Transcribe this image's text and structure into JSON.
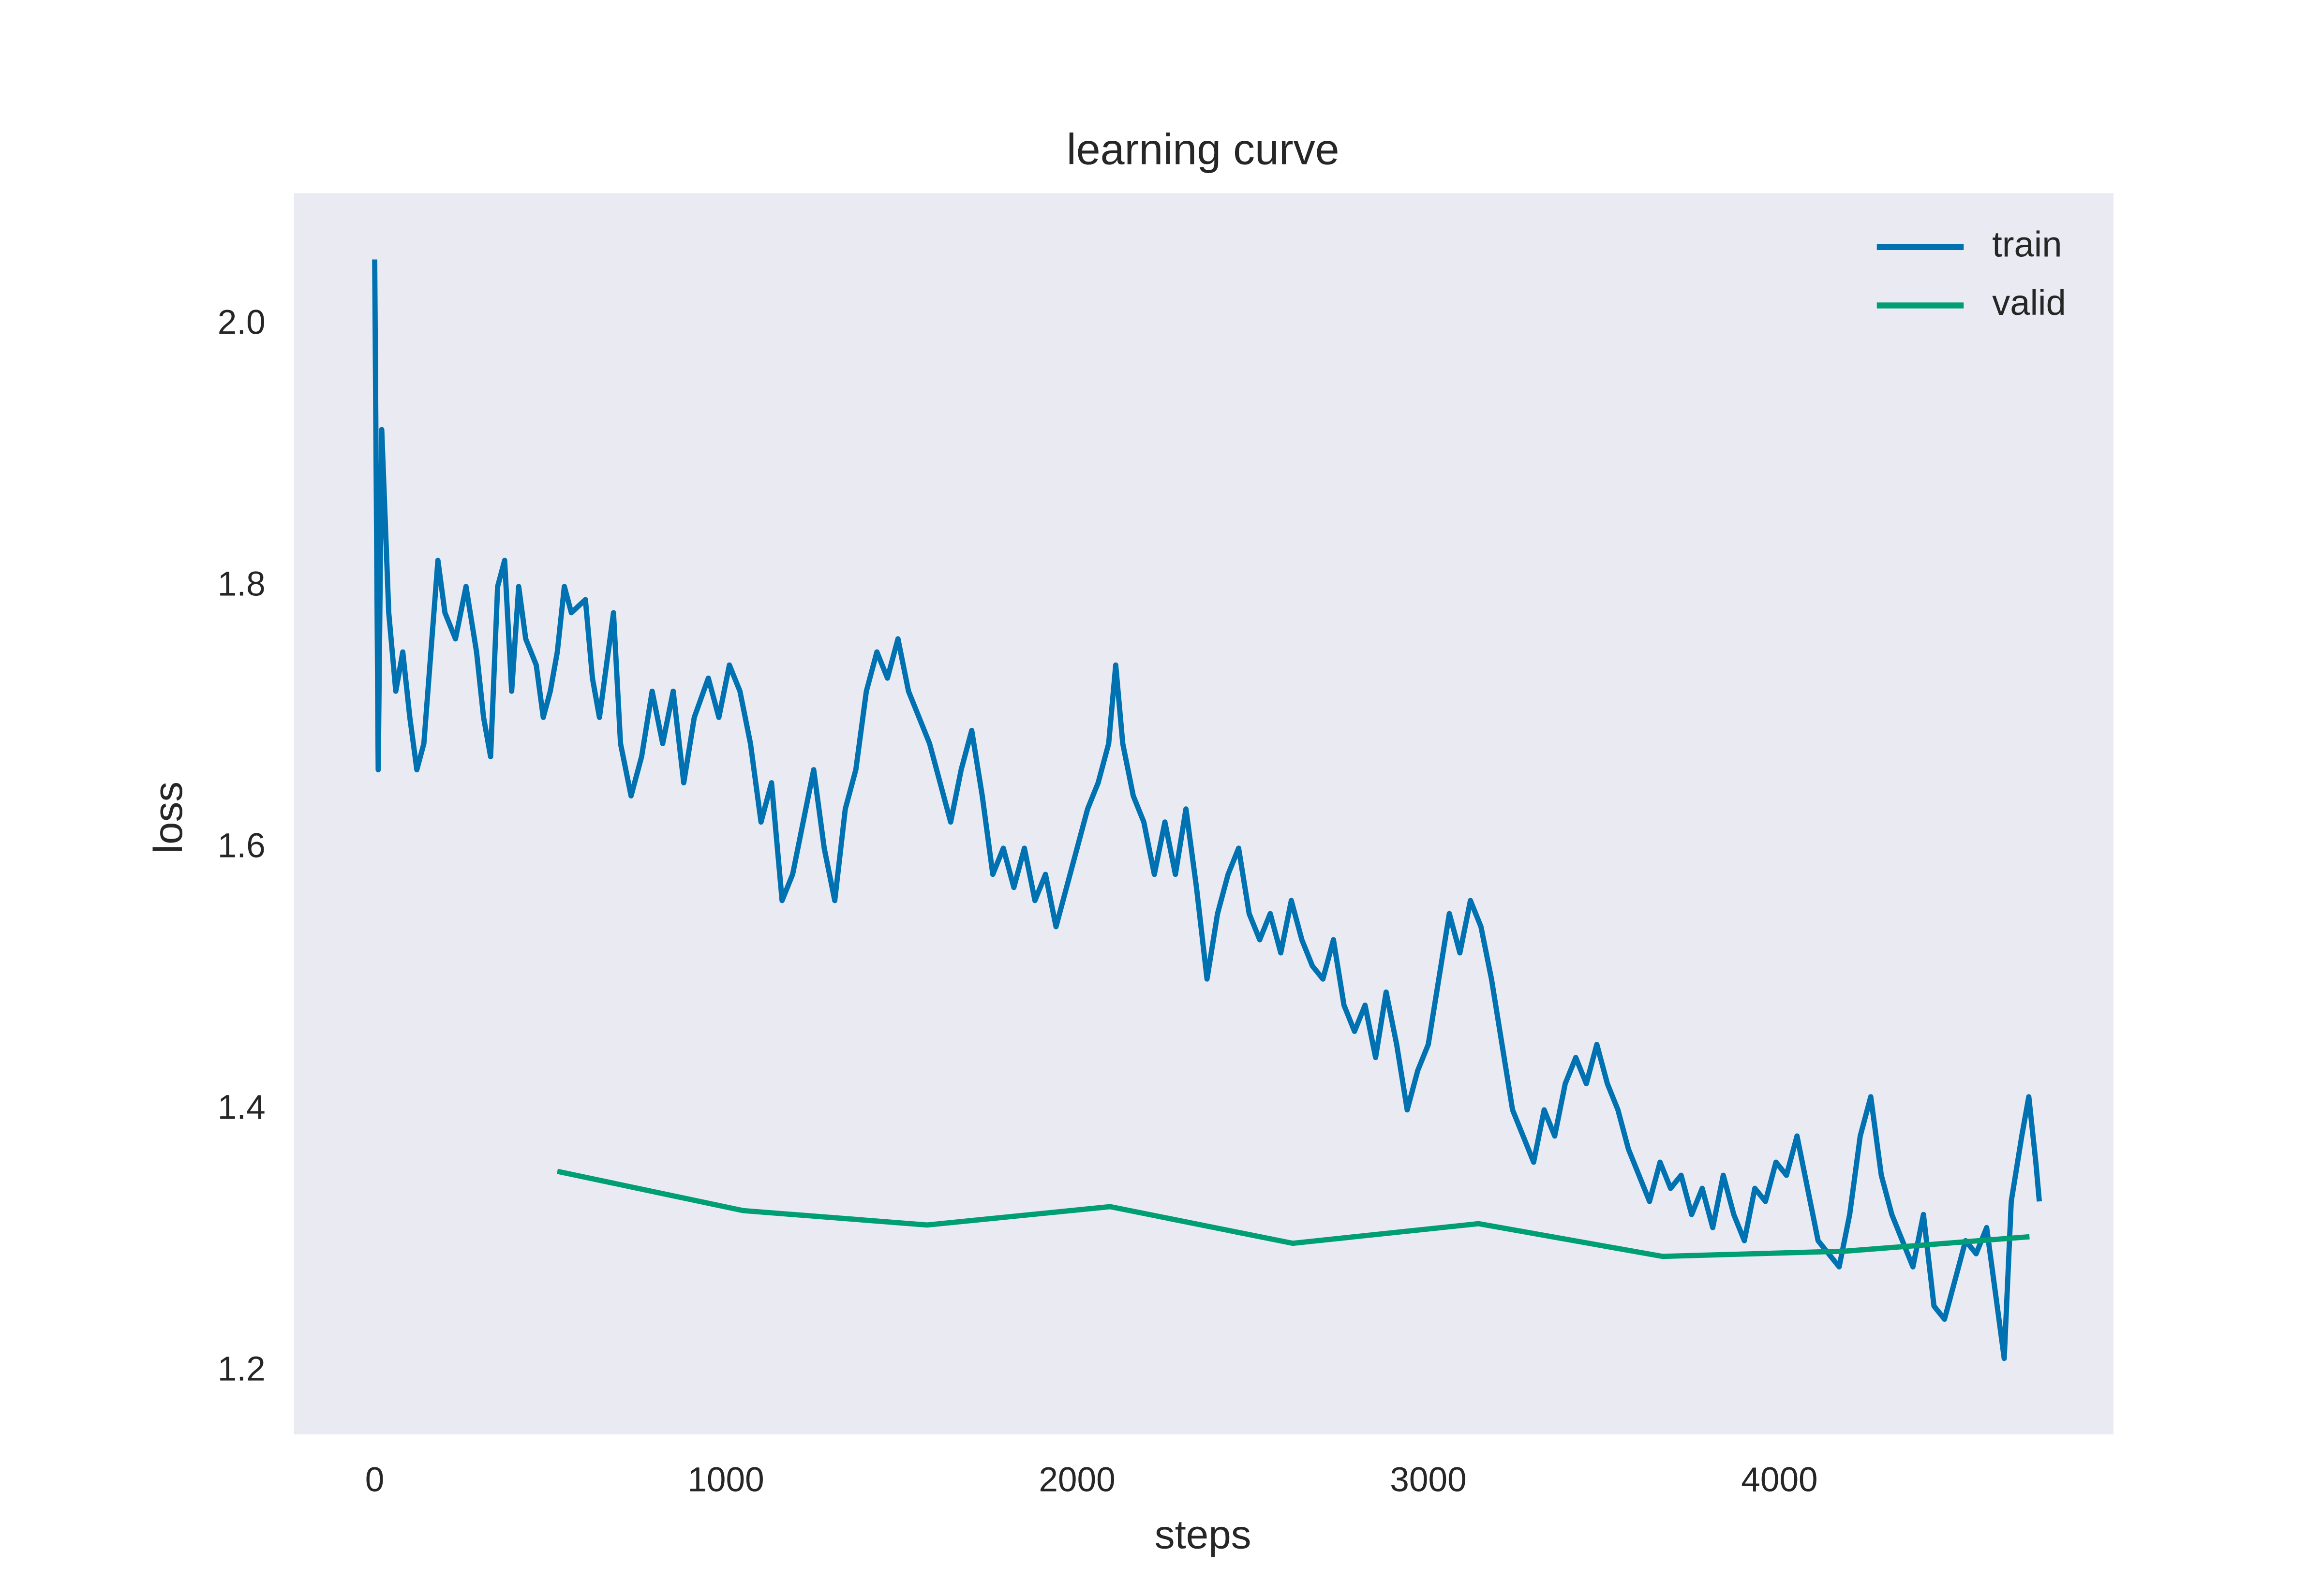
{
  "chart_data": {
    "type": "line",
    "title": "learning curve",
    "x_label": "steps",
    "y_label": "loss",
    "xlim": [
      -230,
      4951
    ],
    "ylim": [
      1.152,
      2.1007
    ],
    "xticks": [
      0,
      1000,
      2000,
      3000,
      4000
    ],
    "yticks": [
      {
        "value": 1.2,
        "label": "1.2"
      },
      {
        "value": 1.4,
        "label": "1.4"
      },
      {
        "value": 1.6,
        "label": "1.6"
      },
      {
        "value": 1.8,
        "label": "1.8"
      },
      {
        "value": 2.0,
        "label": "2.0"
      }
    ],
    "grid": false,
    "legend": "upper right",
    "background": "#eaeaf2",
    "series": [
      {
        "name": "train",
        "color": "#0072b2",
        "x": [
          0,
          10,
          20,
          40,
          60,
          80,
          100,
          120,
          140,
          160,
          180,
          200,
          230,
          260,
          290,
          310,
          330,
          350,
          370,
          390,
          410,
          430,
          460,
          480,
          500,
          520,
          540,
          560,
          600,
          620,
          640,
          660,
          680,
          700,
          730,
          760,
          790,
          820,
          850,
          880,
          910,
          950,
          980,
          1010,
          1040,
          1070,
          1100,
          1130,
          1160,
          1190,
          1220,
          1250,
          1280,
          1310,
          1340,
          1370,
          1400,
          1430,
          1460,
          1490,
          1520,
          1550,
          1580,
          1610,
          1640,
          1670,
          1700,
          1730,
          1760,
          1790,
          1820,
          1850,
          1880,
          1910,
          1940,
          1970,
          2000,
          2030,
          2060,
          2090,
          2110,
          2130,
          2160,
          2190,
          2220,
          2250,
          2280,
          2310,
          2340,
          2370,
          2400,
          2430,
          2460,
          2490,
          2520,
          2550,
          2580,
          2610,
          2640,
          2670,
          2700,
          2730,
          2760,
          2790,
          2820,
          2850,
          2880,
          2910,
          2940,
          2970,
          3000,
          3030,
          3060,
          3090,
          3120,
          3150,
          3180,
          3210,
          3240,
          3270,
          3300,
          3330,
          3360,
          3390,
          3420,
          3450,
          3480,
          3510,
          3540,
          3570,
          3600,
          3630,
          3660,
          3690,
          3720,
          3750,
          3780,
          3810,
          3840,
          3870,
          3900,
          3930,
          3960,
          3990,
          4020,
          4050,
          4080,
          4110,
          4140,
          4170,
          4200,
          4230,
          4260,
          4290,
          4320,
          4350,
          4380,
          4410,
          4440,
          4470,
          4500,
          4530,
          4560,
          4590,
          4620,
          4640,
          4660,
          4690,
          4710,
          4730,
          4740
        ],
        "values": [
          2.05,
          1.66,
          1.92,
          1.78,
          1.72,
          1.75,
          1.7,
          1.66,
          1.68,
          1.75,
          1.82,
          1.78,
          1.76,
          1.8,
          1.75,
          1.7,
          1.67,
          1.8,
          1.82,
          1.72,
          1.8,
          1.76,
          1.74,
          1.7,
          1.72,
          1.75,
          1.8,
          1.78,
          1.79,
          1.73,
          1.7,
          1.74,
          1.78,
          1.68,
          1.64,
          1.67,
          1.72,
          1.68,
          1.72,
          1.65,
          1.7,
          1.73,
          1.7,
          1.74,
          1.72,
          1.68,
          1.62,
          1.65,
          1.56,
          1.58,
          1.62,
          1.66,
          1.6,
          1.56,
          1.63,
          1.66,
          1.72,
          1.75,
          1.73,
          1.76,
          1.72,
          1.7,
          1.68,
          1.65,
          1.62,
          1.66,
          1.69,
          1.64,
          1.58,
          1.6,
          1.57,
          1.6,
          1.56,
          1.58,
          1.54,
          1.57,
          1.6,
          1.63,
          1.65,
          1.68,
          1.74,
          1.68,
          1.64,
          1.62,
          1.58,
          1.62,
          1.58,
          1.63,
          1.57,
          1.5,
          1.55,
          1.58,
          1.6,
          1.55,
          1.53,
          1.55,
          1.52,
          1.56,
          1.53,
          1.51,
          1.5,
          1.53,
          1.48,
          1.46,
          1.48,
          1.44,
          1.49,
          1.45,
          1.4,
          1.43,
          1.45,
          1.5,
          1.55,
          1.52,
          1.56,
          1.54,
          1.5,
          1.45,
          1.4,
          1.38,
          1.36,
          1.4,
          1.38,
          1.42,
          1.44,
          1.42,
          1.45,
          1.42,
          1.4,
          1.37,
          1.35,
          1.33,
          1.36,
          1.34,
          1.35,
          1.32,
          1.34,
          1.31,
          1.35,
          1.32,
          1.3,
          1.34,
          1.33,
          1.36,
          1.35,
          1.38,
          1.34,
          1.3,
          1.29,
          1.28,
          1.32,
          1.38,
          1.41,
          1.35,
          1.32,
          1.3,
          1.28,
          1.32,
          1.25,
          1.24,
          1.27,
          1.3,
          1.29,
          1.31,
          1.25,
          1.21,
          1.33,
          1.38,
          1.41,
          1.36,
          1.33
        ]
      },
      {
        "name": "valid",
        "color": "#009e73",
        "x": [
          520,
          1049,
          1573,
          2094,
          2614,
          3143,
          3667,
          4188,
          4712
        ],
        "values": [
          1.353,
          1.323,
          1.312,
          1.326,
          1.298,
          1.313,
          1.288,
          1.292,
          1.303
        ]
      }
    ]
  }
}
